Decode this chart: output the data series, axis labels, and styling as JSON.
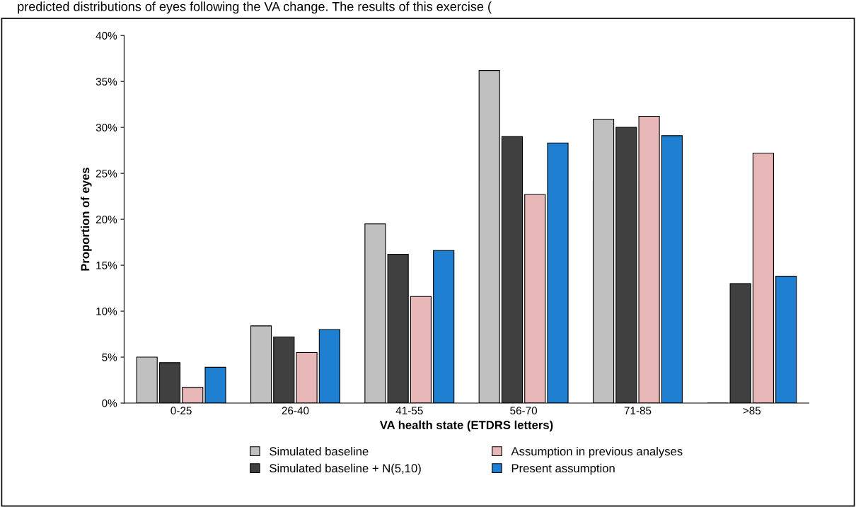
{
  "chart_data": {
    "type": "bar",
    "xlabel": "VA health state (ETDRS letters)",
    "ylabel": "Proportion of eyes",
    "annotations": [
      "predicted distributions of eyes following the VA change. The results of this exercise ("
    ],
    "categories": [
      "0-25",
      "26-40",
      "41-55",
      "56-70",
      "71-85",
      ">85"
    ],
    "series": [
      {
        "name": "Simulated baseline",
        "color": "#c0c0c0",
        "values": [
          5.0,
          8.4,
          19.5,
          36.2,
          30.9,
          0
        ]
      },
      {
        "name": "Simulated baseline + N(5,10)",
        "color": "#404040",
        "values": [
          4.4,
          7.2,
          16.2,
          29.0,
          30.0,
          13.0
        ]
      },
      {
        "name": "Assumption in previous analyses",
        "color": "#e8b8b8",
        "values": [
          1.7,
          5.5,
          11.6,
          22.7,
          31.2,
          27.2
        ]
      },
      {
        "name": "Present assumption",
        "color": "#1f7fd0",
        "values": [
          3.9,
          8.0,
          16.6,
          28.3,
          29.1,
          13.8
        ]
      }
    ],
    "ylim": [
      0,
      40
    ],
    "yticks": [
      {
        "value": 0,
        "label": "0%"
      },
      {
        "value": 5,
        "label": "5%"
      },
      {
        "value": 10,
        "label": "10%"
      },
      {
        "value": 15,
        "label": "15%"
      },
      {
        "value": 20,
        "label": "20%"
      },
      {
        "value": 25,
        "label": "25%"
      },
      {
        "value": 30,
        "label": "30%"
      },
      {
        "value": 35,
        "label": "35%"
      },
      {
        "value": 40,
        "label": "40%"
      }
    ],
    "legend": "bottom",
    "grid": false
  }
}
